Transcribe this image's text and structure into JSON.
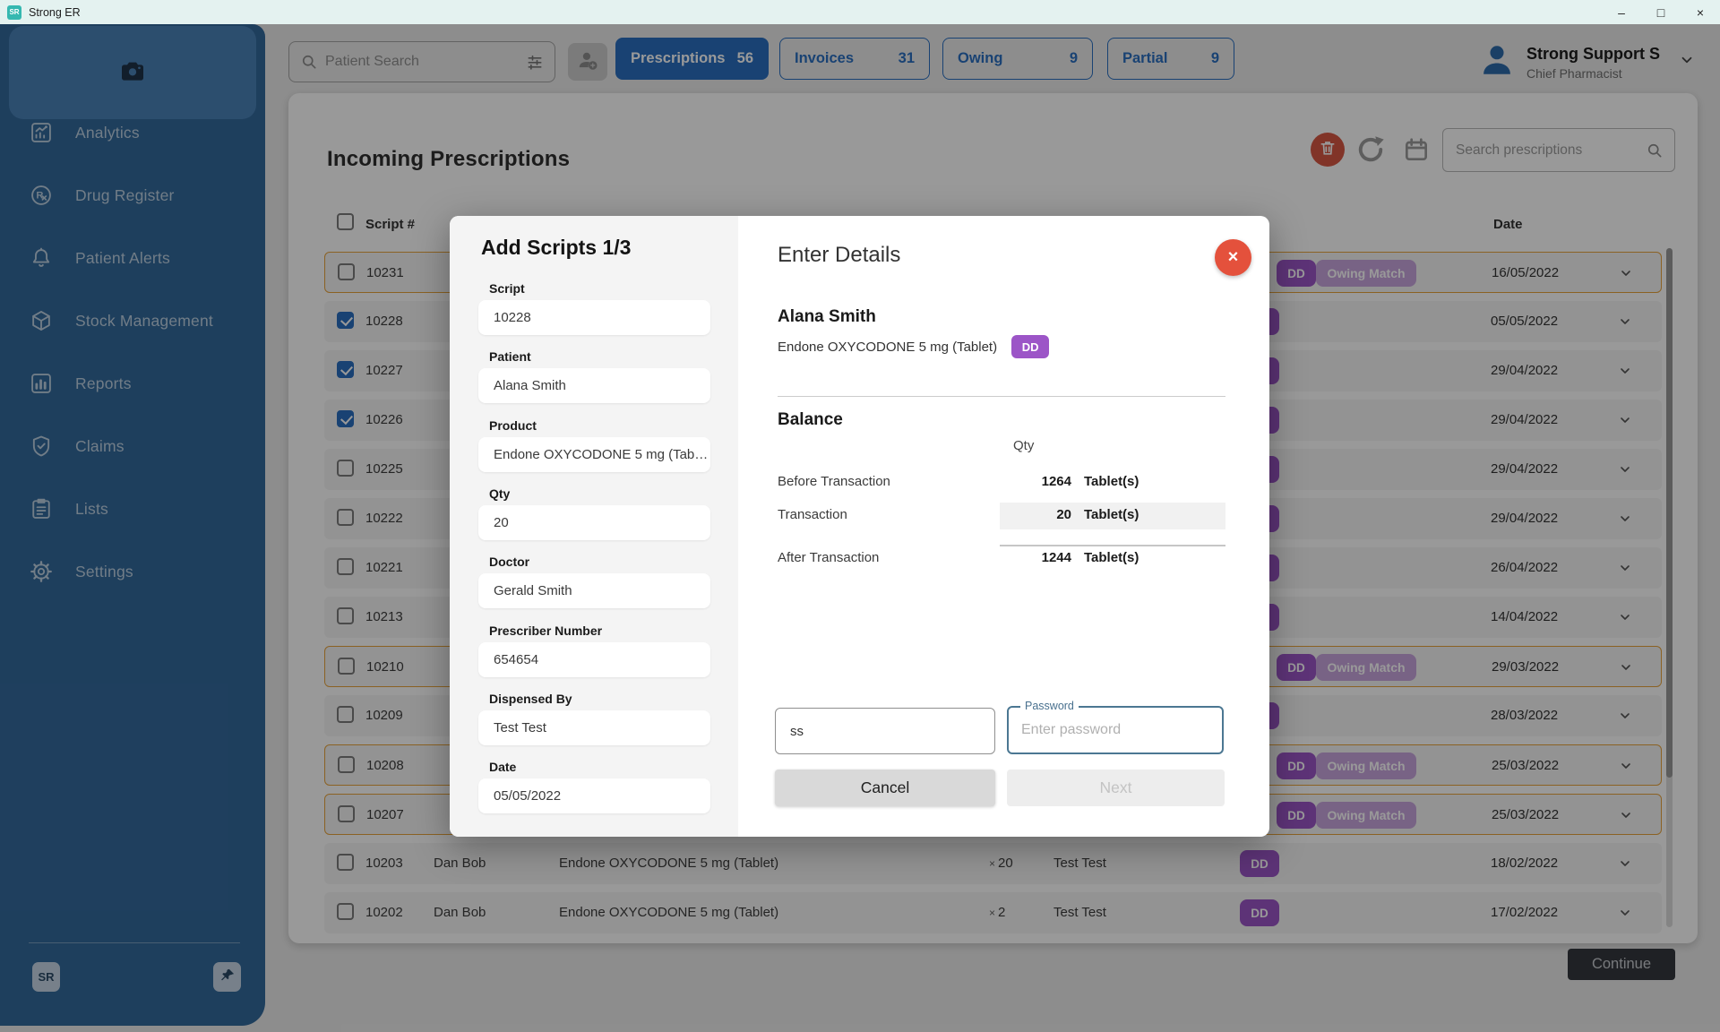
{
  "window": {
    "title": "Strong ER",
    "icon_text": "SR",
    "controls": {
      "minimize": "–",
      "maximize": "□",
      "close": "×"
    }
  },
  "topbar": {
    "patient_search": {
      "placeholder": "Patient Search"
    },
    "filters": [
      {
        "label": "Prescriptions",
        "count": "56",
        "active": true
      },
      {
        "label": "Invoices",
        "count": "31",
        "active": false
      },
      {
        "label": "Owing",
        "count": "9",
        "active": false
      },
      {
        "label": "Partial",
        "count": "9",
        "active": false
      }
    ],
    "user": {
      "name": "Strong Support S",
      "role": "Chief Pharmacist"
    }
  },
  "sidebar": {
    "items": [
      {
        "label": "Analytics",
        "icon": "analytics-icon"
      },
      {
        "label": "Drug Register",
        "icon": "drug-register-icon"
      },
      {
        "label": "Patient Alerts",
        "icon": "patient-alerts-icon"
      },
      {
        "label": "Stock Management",
        "icon": "stock-management-icon"
      },
      {
        "label": "Reports",
        "icon": "reports-icon"
      },
      {
        "label": "Claims",
        "icon": "claims-icon"
      },
      {
        "label": "Lists",
        "icon": "lists-icon"
      },
      {
        "label": "Settings",
        "icon": "settings-icon"
      }
    ],
    "footer": {
      "logo": "SR"
    }
  },
  "main": {
    "title": "Incoming Prescriptions",
    "search": {
      "placeholder": "Search prescriptions"
    },
    "continue_label": "Continue",
    "table": {
      "header": {
        "script": "Script #",
        "date": "Date"
      },
      "badges": {
        "dd": "DD",
        "owing_match": "Owing Match"
      },
      "qty_prefix": "×",
      "rows": [
        {
          "script": "10231",
          "checked": false,
          "flagged": true,
          "dd": true,
          "owing_match": true,
          "date": "16/05/2022"
        },
        {
          "script": "10228",
          "checked": true,
          "flagged": false,
          "dd": true,
          "owing_match": false,
          "date": "05/05/2022"
        },
        {
          "script": "10227",
          "checked": true,
          "flagged": false,
          "dd": true,
          "owing_match": false,
          "date": "29/04/2022"
        },
        {
          "script": "10226",
          "checked": true,
          "flagged": false,
          "dd": true,
          "owing_match": false,
          "date": "29/04/2022"
        },
        {
          "script": "10225",
          "checked": false,
          "flagged": false,
          "dd": true,
          "owing_match": false,
          "date": "29/04/2022"
        },
        {
          "script": "10222",
          "checked": false,
          "flagged": false,
          "dd": true,
          "owing_match": false,
          "date": "29/04/2022"
        },
        {
          "script": "10221",
          "checked": false,
          "flagged": false,
          "dd": true,
          "owing_match": false,
          "date": "26/04/2022"
        },
        {
          "script": "10213",
          "checked": false,
          "flagged": false,
          "dd": true,
          "owing_match": false,
          "date": "14/04/2022"
        },
        {
          "script": "10210",
          "checked": false,
          "flagged": true,
          "dd": true,
          "owing_match": true,
          "date": "29/03/2022"
        },
        {
          "script": "10209",
          "checked": false,
          "flagged": false,
          "dd": true,
          "owing_match": false,
          "date": "28/03/2022"
        },
        {
          "script": "10208",
          "checked": false,
          "flagged": true,
          "dd": true,
          "owing_match": true,
          "date": "25/03/2022"
        },
        {
          "script": "10207",
          "checked": false,
          "flagged": true,
          "dd": true,
          "owing_match": true,
          "date": "25/03/2022"
        },
        {
          "script": "10203",
          "checked": false,
          "flagged": false,
          "patient": "Dan Bob",
          "product": "Endone OXYCODONE 5 mg (Tablet)",
          "qty": "20",
          "dispensed_by": "Test Test",
          "dd": true,
          "owing_match": false,
          "date": "18/02/2022"
        },
        {
          "script": "10202",
          "checked": false,
          "flagged": false,
          "patient": "Dan Bob",
          "product": "Endone OXYCODONE 5 mg (Tablet)",
          "qty": "2",
          "dispensed_by": "Test Test",
          "dd": true,
          "owing_match": false,
          "date": "17/02/2022"
        }
      ]
    }
  },
  "modal": {
    "form": {
      "title": "Add Scripts 1/3",
      "fields": [
        {
          "label": "Script",
          "value": "10228"
        },
        {
          "label": "Patient",
          "value": "Alana Smith"
        },
        {
          "label": "Product",
          "value": "Endone OXYCODONE 5 mg (Tab…"
        },
        {
          "label": "Qty",
          "value": "20"
        },
        {
          "label": "Doctor",
          "value": "Gerald Smith"
        },
        {
          "label": "Prescriber Number",
          "value": "654654"
        },
        {
          "label": "Dispensed By",
          "value": "Test Test"
        },
        {
          "label": "Date",
          "value": "05/05/2022"
        }
      ]
    },
    "details": {
      "title": "Enter Details",
      "close_icon": "×",
      "patient": "Alana Smith",
      "product": "Endone OXYCODONE 5 mg (Tablet)",
      "dd_badge": "DD",
      "balance": {
        "title": "Balance",
        "qty_header": "Qty",
        "rows": [
          {
            "label": "Before Transaction",
            "qty": "1264",
            "unit": "Tablet(s)",
            "highlight": false
          },
          {
            "label": "Transaction",
            "qty": "20",
            "unit": "Tablet(s)",
            "highlight": true
          },
          {
            "label": "After Transaction",
            "qty": "1244",
            "unit": "Tablet(s)",
            "highlight": false
          }
        ]
      },
      "initials_value": "ss",
      "password": {
        "label": "Password",
        "placeholder": "Enter password"
      },
      "cancel_label": "Cancel",
      "next_label": "Next"
    }
  },
  "colors": {
    "accent": "#2a6fc0",
    "purple": "#9c55c7",
    "red": "#d85743",
    "close-red": "#e4513c",
    "orange": "#e8a33b",
    "sidebar": "#33699c",
    "sidebar-light": "#4a82b8",
    "dark": "#34383e"
  }
}
